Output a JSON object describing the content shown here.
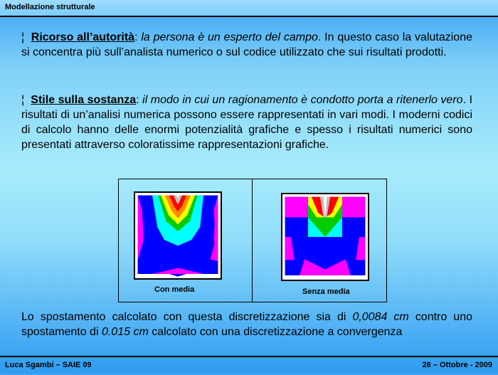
{
  "header": {
    "title": "Modellazione strutturale"
  },
  "paragraphs": [
    {
      "bullet": "¦",
      "term": "Ricorso all’autorità",
      "colon": ":",
      "italic": "la persona è un esperto del campo",
      "rest": ". In questo caso la valutazione si concentra più sull’analista numerico o sul codice utilizzato che sui risultati prodotti."
    },
    {
      "bullet": "¦",
      "term": "Stile sulla sostanza",
      "colon": ":",
      "italic": "il modo in cui un ragionamento è condotto porta a ritenerlo vero",
      "rest": ". I risultati di un’analisi numerica possono essere rappresentati in vari modi. I moderni codici di calcolo hanno delle enormi potenzialità grafiche e spesso i risultati numerici sono presentati attraverso coloratissime rappresentazioni grafiche."
    }
  ],
  "figure": {
    "left_caption": "Con media",
    "right_caption": "Senza media"
  },
  "conclusion": {
    "t1": "Lo spostamento calcolato con questa discretizzazione sia di ",
    "v1": "0,0084 cm",
    "t2": " contro uno spostamento di ",
    "v2": "0.015 cm",
    "t3": " calcolato con una discretizzazione a convergenza"
  },
  "footer": {
    "left": "Luca Sgambi – SAIE 09",
    "right": "28 – Ottobre - 2009"
  }
}
